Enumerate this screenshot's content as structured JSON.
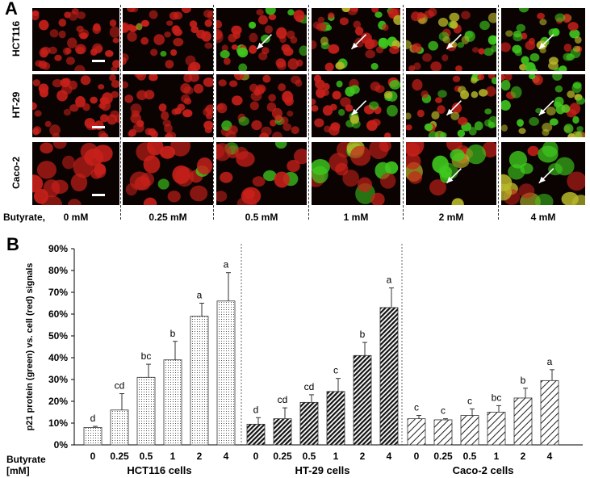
{
  "panel_a": {
    "letter": "A",
    "rows": [
      "HCT116",
      "HT-29",
      "Caco-2"
    ],
    "row_label_prefix": "Butyrate,",
    "columns": [
      "0 mM",
      "0.25 mM",
      "0.5 mM",
      "1 mM",
      "2 mM",
      "4 mM"
    ],
    "colors": {
      "red_signal": "#c8201a",
      "green_signal": "#3fc81e",
      "background": "#0a0302"
    }
  },
  "panel_b": {
    "letter": "B"
  },
  "chart_data": {
    "type": "bar",
    "ylabel": "p21 protein (green) vs. cell (red) signals",
    "xlabel_prefix": "Butyrate\n[mM]",
    "ylim": [
      0,
      90
    ],
    "yticks": [
      "0%",
      "10%",
      "20%",
      "30%",
      "40%",
      "50%",
      "60%",
      "70%",
      "80%",
      "90%"
    ],
    "grid": false,
    "groups": [
      {
        "name": "HCT116 cells",
        "categories": [
          "0",
          "0.25",
          "0.5",
          "1",
          "2",
          "4"
        ],
        "values": [
          8,
          16,
          31,
          39,
          59,
          66
        ],
        "errors": [
          0.5,
          7.5,
          6,
          8.5,
          6,
          13
        ],
        "letters": [
          "d",
          "cd",
          "bc",
          "b",
          "a",
          "a"
        ],
        "pattern": "dots"
      },
      {
        "name": "HT-29 cells",
        "categories": [
          "0",
          "0.25",
          "0.5",
          "1",
          "2",
          "4"
        ],
        "values": [
          9.5,
          12,
          19.5,
          24.5,
          41,
          63
        ],
        "errors": [
          3,
          5,
          3.5,
          6,
          6,
          9
        ],
        "letters": [
          "d",
          "cd",
          "cd",
          "c",
          "b",
          "a"
        ],
        "pattern": "dense-diagonal"
      },
      {
        "name": "Caco-2 cells",
        "categories": [
          "0",
          "0.25",
          "0.5",
          "1",
          "2",
          "4"
        ],
        "values": [
          12,
          11.5,
          13.5,
          15,
          21.5,
          29.5
        ],
        "errors": [
          1.5,
          0.5,
          3,
          3,
          4.5,
          5
        ],
        "letters": [
          "c",
          "c",
          "c",
          "bc",
          "b",
          "a"
        ],
        "pattern": "sparse-diagonal"
      }
    ]
  }
}
